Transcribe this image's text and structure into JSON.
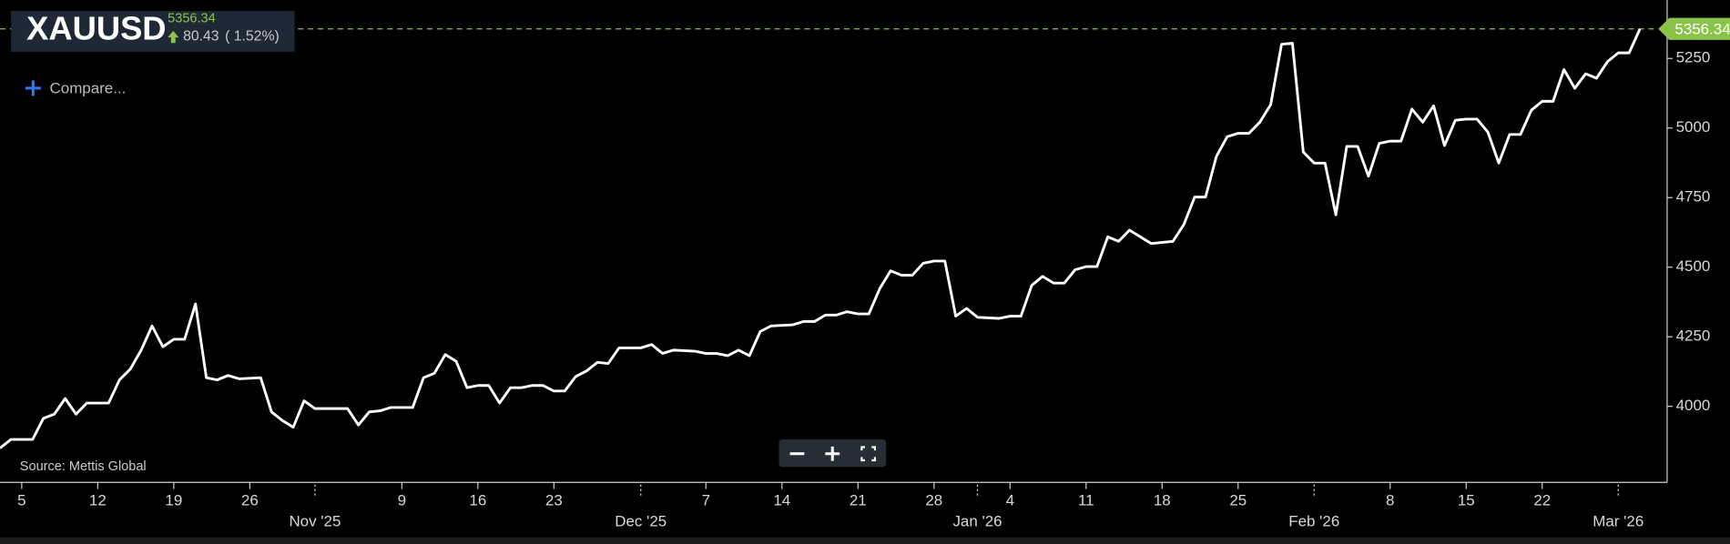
{
  "chart_data": {
    "type": "line",
    "title": "XAUUSD",
    "price_change": "80.43",
    "price_change_pct": "( 1.52%)",
    "compare": "Compare...",
    "source": "Source: Mettis Global",
    "color": "#ffffff",
    "price_color": "#8bc34a",
    "x": [
      -2,
      -1,
      1,
      2,
      3,
      4,
      5,
      6,
      8,
      9,
      10,
      11,
      12,
      13,
      14,
      15,
      16,
      17,
      18,
      19,
      20,
      22,
      23,
      24,
      25,
      26,
      27,
      30,
      31,
      32,
      33,
      34,
      36,
      37,
      38,
      39,
      40,
      41,
      42,
      43,
      44,
      45,
      46,
      47,
      48,
      49,
      50,
      51,
      52,
      53,
      54,
      55,
      57,
      58,
      59,
      60,
      62,
      63,
      64,
      65,
      66,
      67,
      68,
      69,
      71,
      72,
      73,
      74,
      75,
      76,
      77,
      78,
      79,
      80,
      81,
      82,
      83,
      84,
      85,
      86,
      87,
      88,
      90,
      91,
      92,
      93,
      94,
      95,
      96,
      97,
      98,
      99,
      100,
      101,
      102,
      103,
      104,
      106,
      107,
      108,
      109,
      110,
      111,
      112,
      113,
      114,
      115,
      116,
      117,
      118,
      119,
      120,
      121,
      122,
      123,
      124,
      125,
      126,
      127,
      128,
      129,
      130,
      131,
      132,
      133,
      134,
      135,
      136,
      137,
      138,
      139,
      140,
      141,
      142,
      143,
      144,
      145,
      146,
      147,
      148,
      149
    ],
    "values": [
      3850,
      3881,
      3881,
      3957,
      3972,
      4028,
      3972,
      4012,
      4012,
      4095,
      4134,
      4202,
      4289,
      4214,
      4241,
      4241,
      4368,
      4103,
      4095,
      4111,
      4099,
      4103,
      3980,
      3949,
      3925,
      4020,
      3992,
      3992,
      3933,
      3980,
      3984,
      3996,
      3996,
      4103,
      4119,
      4186,
      4162,
      4067,
      4075,
      4075,
      4012,
      4067,
      4067,
      4075,
      4075,
      4055,
      4055,
      4107,
      4127,
      4158,
      4154,
      4210,
      4210,
      4222,
      4190,
      4202,
      4198,
      4190,
      4190,
      4182,
      4202,
      4182,
      4269,
      4289,
      4293,
      4305,
      4305,
      4328,
      4328,
      4340,
      4332,
      4332,
      4423,
      4487,
      4471,
      4471,
      4514,
      4522,
      4522,
      4324,
      4352,
      4320,
      4316,
      4324,
      4324,
      4435,
      4467,
      4443,
      4443,
      4491,
      4502,
      4502,
      4609,
      4593,
      4633,
      4609,
      4585,
      4593,
      4653,
      4752,
      4752,
      4898,
      4969,
      4981,
      4981,
      5021,
      5084,
      5301,
      5305,
      4914,
      4874,
      4874,
      4688,
      4934,
      4934,
      4827,
      4945,
      4953,
      4953,
      5068,
      5021,
      5080,
      4937,
      5028,
      5032,
      5032,
      4985,
      4874,
      4977,
      4977,
      5064,
      5096,
      5096,
      5210,
      5143,
      5195,
      5179,
      5238,
      5270,
      5270,
      5356.34
    ],
    "xlim": [
      -2,
      151.5
    ],
    "ylim": [
      3727,
      5460
    ],
    "yticks": [
      4000,
      4250,
      4500,
      4750,
      5000,
      5250
    ],
    "xticks": [
      {
        "value": 0,
        "label": "5"
      },
      {
        "value": 7,
        "label": "12"
      },
      {
        "value": 14,
        "label": "19"
      },
      {
        "value": 21,
        "label": "26"
      },
      {
        "value": 35,
        "label": "9"
      },
      {
        "value": 42,
        "label": "16"
      },
      {
        "value": 49,
        "label": "23"
      },
      {
        "value": 63,
        "label": "7"
      },
      {
        "value": 70,
        "label": "14"
      },
      {
        "value": 77,
        "label": "21"
      },
      {
        "value": 84,
        "label": "28"
      },
      {
        "value": 91,
        "label": "4"
      },
      {
        "value": 98,
        "label": "11"
      },
      {
        "value": 105,
        "label": "18"
      },
      {
        "value": 112,
        "label": "25"
      },
      {
        "value": 126,
        "label": "8"
      },
      {
        "value": 133,
        "label": "15"
      },
      {
        "value": 140,
        "label": "22"
      }
    ],
    "month_ticks": [
      {
        "value": 27,
        "label": "Nov '25"
      },
      {
        "value": 57,
        "label": "Dec '25"
      },
      {
        "value": 88,
        "label": "Jan '26"
      },
      {
        "value": 119,
        "label": "Feb '26"
      },
      {
        "value": 147,
        "label": "Mar '26"
      }
    ]
  }
}
